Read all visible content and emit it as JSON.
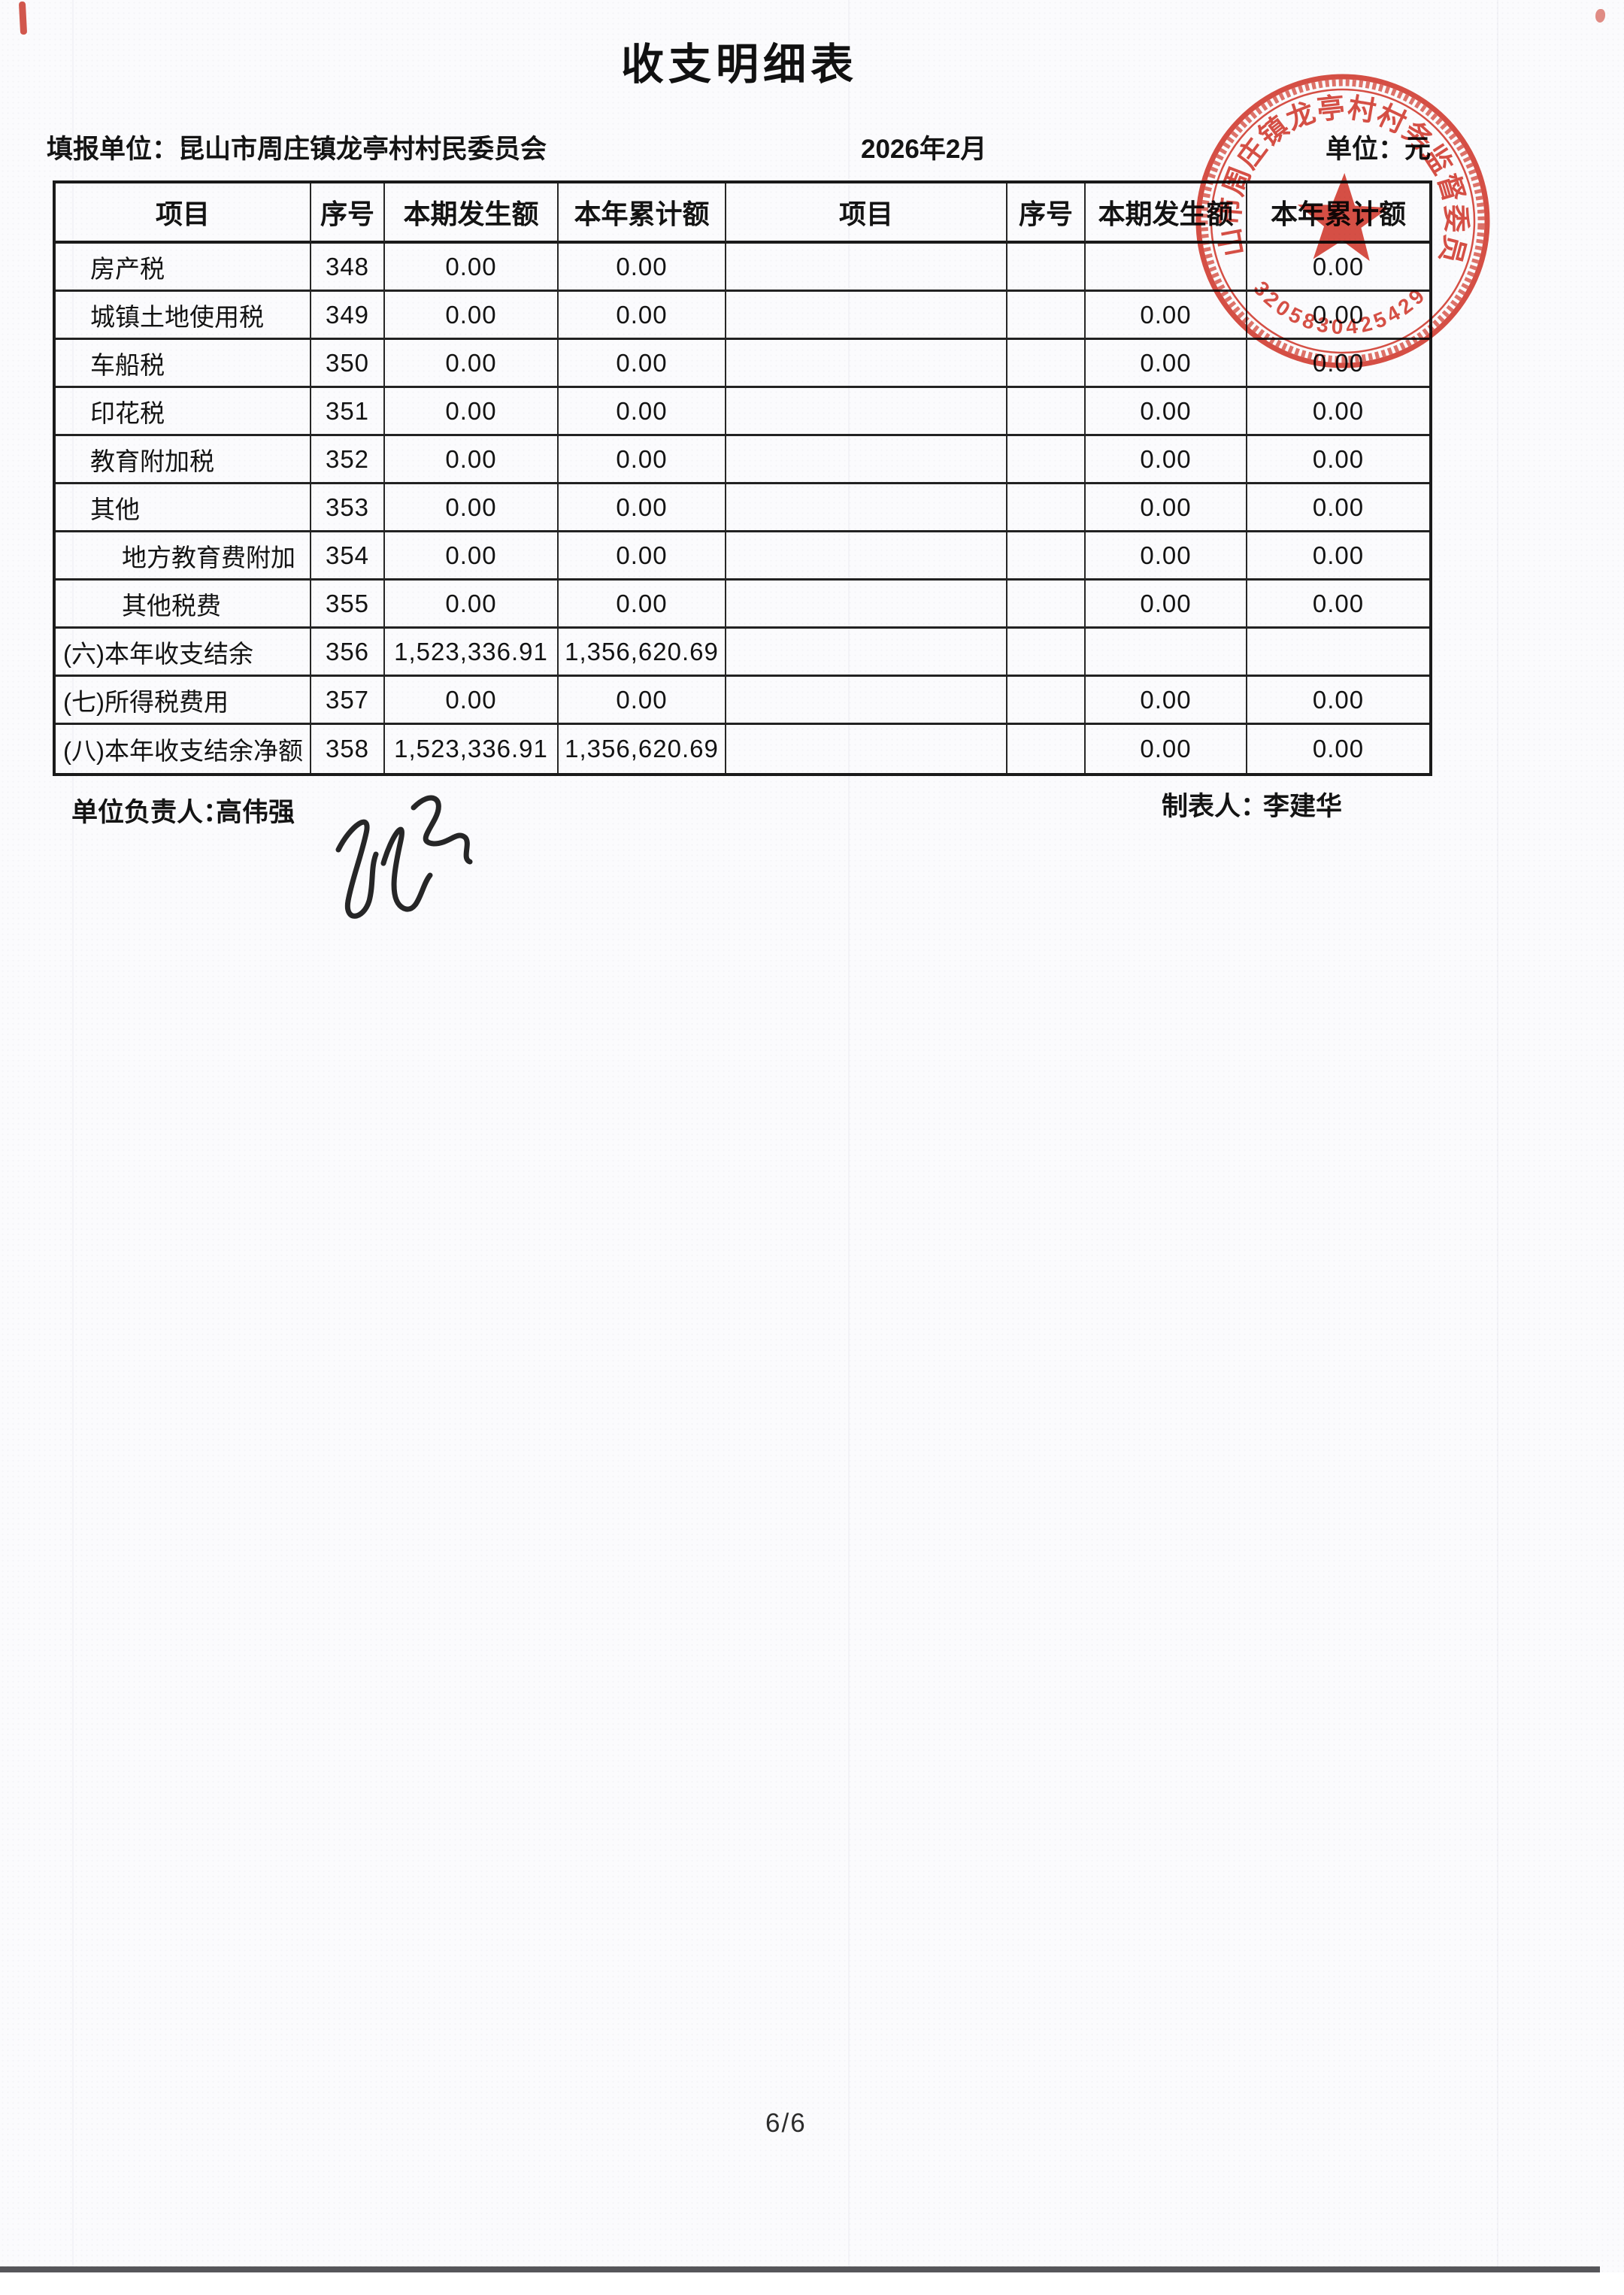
{
  "page": {
    "title": "收支明细表",
    "report_unit_label": "填报单位：",
    "report_unit": "昆山市周庄镇龙亭村村民委员会",
    "period": "2026年2月",
    "unit_label": "单位：元",
    "page_number": "6/6"
  },
  "table": {
    "headers": [
      "项目",
      "序号",
      "本期发生额",
      "本年累计额",
      "项目",
      "序号",
      "本期发生额",
      "本年累计额"
    ],
    "rows": [
      {
        "item": "房产税",
        "indent": 1,
        "seq": "348",
        "current": "0.00",
        "ytd": "0.00",
        "item2": "",
        "seq2": "",
        "current2": "",
        "ytd2": "0.00"
      },
      {
        "item": "城镇土地使用税",
        "indent": 1,
        "seq": "349",
        "current": "0.00",
        "ytd": "0.00",
        "item2": "",
        "seq2": "",
        "current2": "0.00",
        "ytd2": "0.00"
      },
      {
        "item": "车船税",
        "indent": 1,
        "seq": "350",
        "current": "0.00",
        "ytd": "0.00",
        "item2": "",
        "seq2": "",
        "current2": "0.00",
        "ytd2": "0.00"
      },
      {
        "item": "印花税",
        "indent": 1,
        "seq": "351",
        "current": "0.00",
        "ytd": "0.00",
        "item2": "",
        "seq2": "",
        "current2": "0.00",
        "ytd2": "0.00"
      },
      {
        "item": "教育附加税",
        "indent": 1,
        "seq": "352",
        "current": "0.00",
        "ytd": "0.00",
        "item2": "",
        "seq2": "",
        "current2": "0.00",
        "ytd2": "0.00"
      },
      {
        "item": "其他",
        "indent": 1,
        "seq": "353",
        "current": "0.00",
        "ytd": "0.00",
        "item2": "",
        "seq2": "",
        "current2": "0.00",
        "ytd2": "0.00"
      },
      {
        "item": "地方教育费附加",
        "indent": 2,
        "seq": "354",
        "current": "0.00",
        "ytd": "0.00",
        "item2": "",
        "seq2": "",
        "current2": "0.00",
        "ytd2": "0.00"
      },
      {
        "item": "其他税费",
        "indent": 2,
        "seq": "355",
        "current": "0.00",
        "ytd": "0.00",
        "item2": "",
        "seq2": "",
        "current2": "0.00",
        "ytd2": "0.00"
      },
      {
        "item": "(六)本年收支结余",
        "indent": 0,
        "seq": "356",
        "current": "1,523,336.91",
        "ytd": "1,356,620.69",
        "item2": "",
        "seq2": "",
        "current2": "",
        "ytd2": ""
      },
      {
        "item": "(七)所得税费用",
        "indent": 0,
        "seq": "357",
        "current": "0.00",
        "ytd": "0.00",
        "item2": "",
        "seq2": "",
        "current2": "0.00",
        "ytd2": "0.00"
      },
      {
        "item": "(八)本年收支结余净额",
        "indent": 0,
        "seq": "358",
        "current": "1,523,336.91",
        "ytd": "1,356,620.69",
        "item2": "",
        "seq2": "",
        "current2": "0.00",
        "ytd2": "0.00"
      }
    ]
  },
  "footer": {
    "responsible_label": "单位负责人：",
    "responsible_name": "高伟强",
    "preparer_label": "制表人：",
    "preparer_name": "李建华"
  },
  "stamp": {
    "ring_text": "昆山市周庄镇龙亭村村务监督委员会",
    "number": "3205830425429",
    "color": "#d4382b"
  }
}
